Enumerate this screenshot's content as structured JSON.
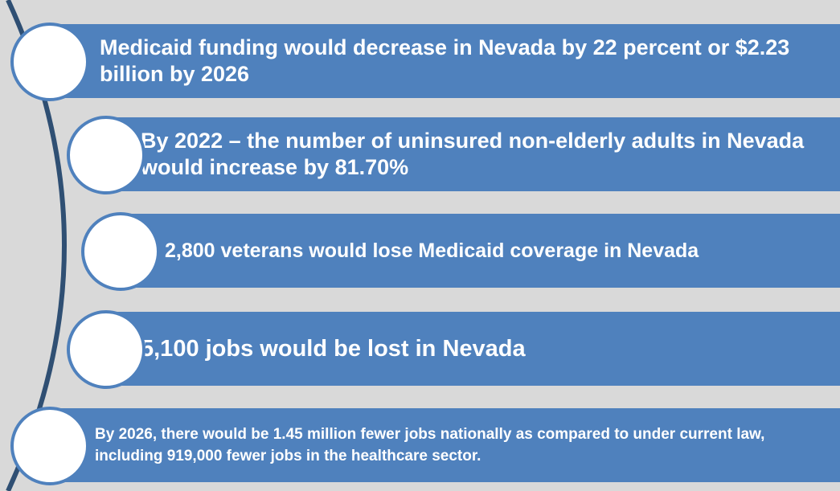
{
  "items": [
    {
      "text": "Medicaid funding would decrease in Nevada by 22 percent or $2.23 billion by 2026"
    },
    {
      "text": "By 2022 – the number of uninsured non-elderly adults in Nevada would increase by 81.70%"
    },
    {
      "text": "2,800 veterans would lose Medicaid coverage in Nevada"
    },
    {
      "text": "5,100 jobs would be lost in Nevada"
    },
    {
      "text": "By 2026, there would be 1.45 million fewer jobs nationally as compared to under current law, including 919,000 fewer jobs in the healthcare sector."
    }
  ],
  "colors": {
    "bar": "#4f81bd",
    "arc": "#2f4f73",
    "background": "#d9d9d9",
    "circle": "#ffffff"
  }
}
